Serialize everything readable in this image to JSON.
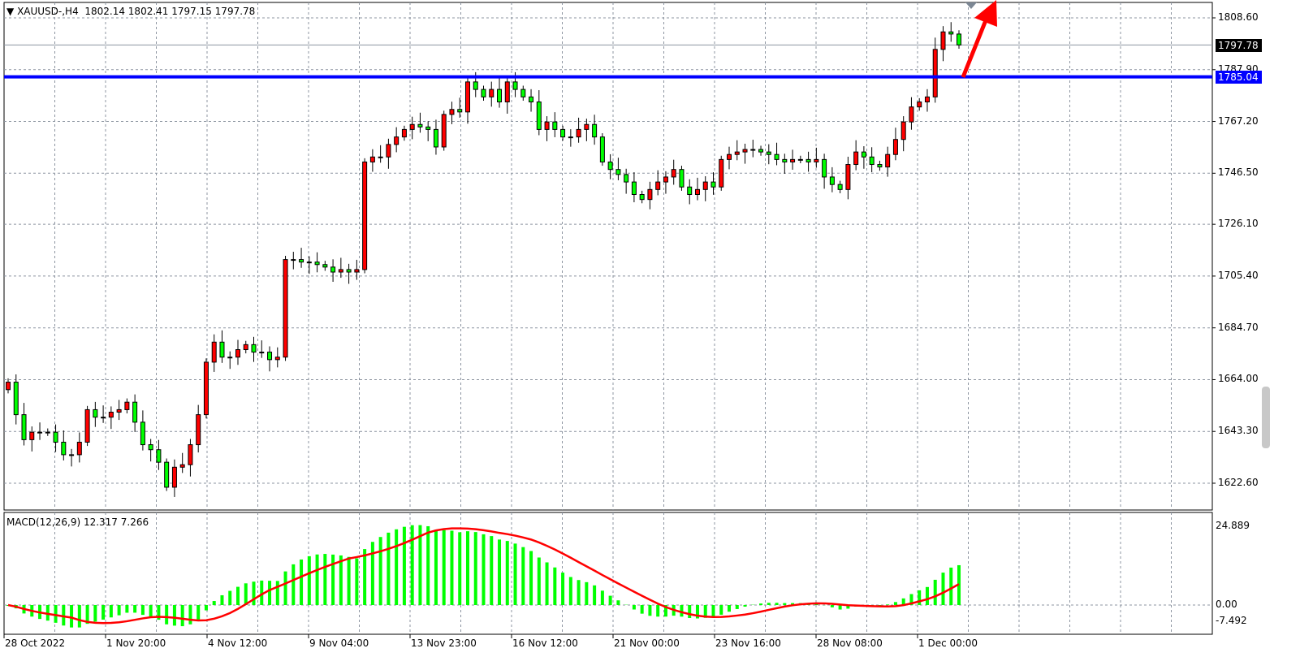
{
  "header": {
    "menu_icon": "triangle-down-icon",
    "symbol": "XAUUSD-,H4",
    "ohlc": "1802.14 1802.41 1797.15 1797.78"
  },
  "indicator": {
    "label": "MACD(12,26,9) 12.317 7.266",
    "axis": [
      "24.889",
      "0.00",
      "-7.492"
    ]
  },
  "price_axis": [
    "1808.60",
    "1787.90",
    "1767.20",
    "1746.50",
    "1726.10",
    "1705.40",
    "1684.70",
    "1664.00",
    "1643.30",
    "1622.60"
  ],
  "current_price": "1797.78",
  "level_line": "1785.04",
  "time_axis": [
    "28 Oct 2022",
    "1 Nov 20:00",
    "4 Nov 12:00",
    "9 Nov 04:00",
    "13 Nov 23:00",
    "16 Nov 12:00",
    "21 Nov 00:00",
    "23 Nov 16:00",
    "28 Nov 08:00",
    "1 Dec 00:00"
  ],
  "colors": {
    "bull": "#ff0000",
    "bear": "#00ff00",
    "level": "#0000ff",
    "arrow": "#ff0000",
    "macd_hist": "#00ff00",
    "signal": "#ff0000",
    "grid": "#8c94a0"
  },
  "chart_data": {
    "type": "candlestick",
    "symbol": "XAUUSD-",
    "timeframe": "H4",
    "ylim": [
      1616.5,
      1815.5
    ],
    "closes": [
      1663,
      1650,
      1640,
      1643,
      1643,
      1643,
      1639,
      1634,
      1634,
      1639,
      1652,
      1649,
      1649,
      1651,
      1652,
      1655,
      1647,
      1638,
      1636,
      1631,
      1621,
      1629,
      1630,
      1638,
      1650,
      1671,
      1679,
      1673,
      1673,
      1676,
      1678,
      1675,
      1675,
      1672,
      1673,
      1712,
      1712,
      1711,
      1711,
      1710,
      1709,
      1707,
      1708,
      1707,
      1708,
      1751,
      1753,
      1753,
      1758,
      1761,
      1764,
      1766,
      1765,
      1764,
      1757,
      1770,
      1772,
      1771,
      1783,
      1780,
      1777,
      1780,
      1775,
      1783,
      1780,
      1777,
      1775,
      1764,
      1767,
      1764,
      1761,
      1761,
      1764,
      1766,
      1761,
      1751,
      1748,
      1746,
      1743,
      1738,
      1736,
      1740,
      1743,
      1745,
      1748,
      1741,
      1738,
      1740,
      1743,
      1741,
      1752,
      1754,
      1755,
      1756,
      1756,
      1755,
      1754,
      1752,
      1751,
      1752,
      1752,
      1751,
      1752,
      1745,
      1742,
      1740,
      1750,
      1755,
      1753,
      1750,
      1749,
      1754,
      1760,
      1767,
      1773,
      1775,
      1777,
      1796,
      1803,
      1802.14,
      1797.78
    ],
    "macd": {
      "fast": 12,
      "slow": 26,
      "signal": 9,
      "last_main": 12.317,
      "last_signal": 7.266,
      "ylim": [
        -7.492,
        24.889
      ]
    }
  }
}
